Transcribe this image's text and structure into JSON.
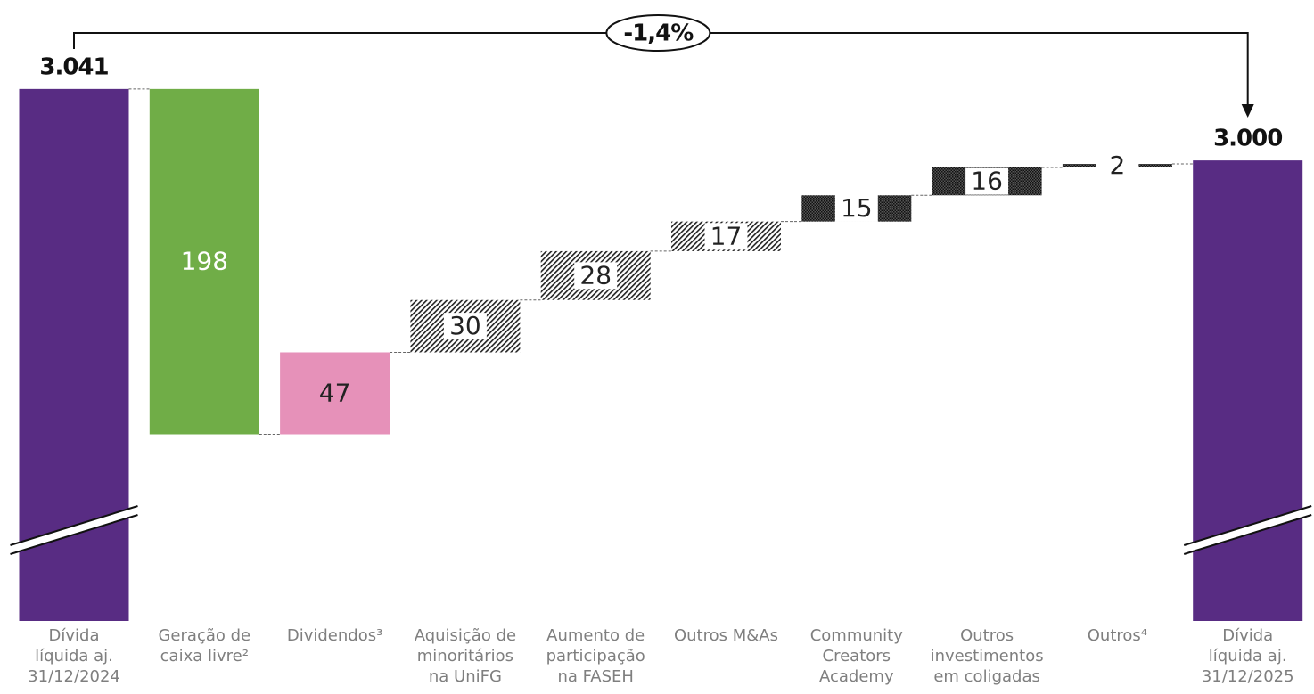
{
  "chart_data": {
    "type": "waterfall",
    "categories": [
      "Dívida\nlíquida aj.\n31/12/2024",
      "Geração de\ncaixa livre²",
      "Dividendos³",
      "Aquisição de\nminoritários\nna UniFG",
      "Aumento de\nparticipação\nna FASEH",
      "Outros M&As",
      "Community\nCreators\nAcademy",
      "Outros\ninvestimentos\nem coligadas",
      "Outros⁴",
      "Dívida\nlíquida aj.\n31/12/2025"
    ],
    "measures": [
      "absolute",
      "decrease",
      "increase",
      "increase",
      "increase",
      "increase",
      "increase",
      "increase",
      "increase",
      "absolute"
    ],
    "values": [
      3041,
      198,
      47,
      30,
      28,
      17,
      15,
      16,
      2,
      3000
    ],
    "value_labels": [
      "3.041",
      "198",
      "47",
      "30",
      "28",
      "17",
      "15",
      "16",
      "2",
      "3.000"
    ],
    "colors": [
      "#582c83",
      "#70ad47",
      "#e691b9",
      "#222222",
      "#222222",
      "#222222",
      "#222222",
      "#222222",
      "#222222",
      "#582c83"
    ],
    "patterns": [
      null,
      null,
      null,
      "diagonal",
      "diagonal",
      "diagonal",
      "checker",
      "checker",
      "checker",
      null
    ],
    "ylim": [
      2736,
      3092
    ],
    "axis_break": true,
    "annotation": "-1,4%"
  }
}
